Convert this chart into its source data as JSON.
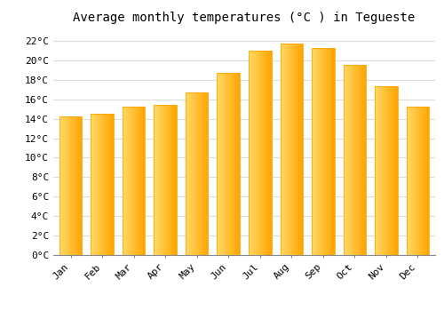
{
  "title": "Average monthly temperatures (°C ) in Tegueste",
  "months": [
    "Jan",
    "Feb",
    "Mar",
    "Apr",
    "May",
    "Jun",
    "Jul",
    "Aug",
    "Sep",
    "Oct",
    "Nov",
    "Dec"
  ],
  "values": [
    14.2,
    14.5,
    15.2,
    15.4,
    16.7,
    18.7,
    21.0,
    21.7,
    21.3,
    19.5,
    17.3,
    15.2
  ],
  "bar_color_left": "#FFD966",
  "bar_color_right": "#FFA500",
  "background_color": "#FFFFFF",
  "plot_bg_color": "#FFFFFF",
  "grid_color": "#DDDDDD",
  "ylim": [
    0,
    23
  ],
  "yticks": [
    0,
    2,
    4,
    6,
    8,
    10,
    12,
    14,
    16,
    18,
    20,
    22
  ],
  "title_fontsize": 10,
  "tick_fontsize": 8,
  "font_family": "monospace"
}
